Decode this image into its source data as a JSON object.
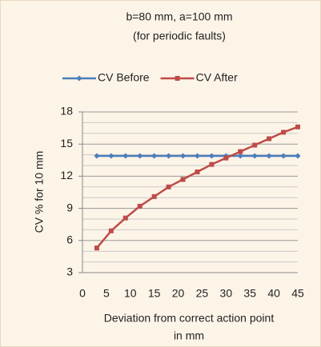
{
  "chart_data": {
    "type": "line",
    "title": [
      "b=80 mm, a=100 mm",
      "(for periodic faults)"
    ],
    "y_label": "CV % for 10 mm",
    "x_label": [
      "Deviation from correct  action point",
      "in mm"
    ],
    "xlim": [
      0,
      45
    ],
    "xticks": [
      0,
      5,
      10,
      15,
      20,
      25,
      30,
      35,
      40,
      45
    ],
    "ylim": [
      3,
      18
    ],
    "yticks": [
      3,
      6,
      9,
      12,
      15,
      18
    ],
    "minor_yticks": [
      4,
      5,
      7,
      8,
      10,
      11,
      13,
      14,
      16,
      17
    ],
    "grid": true,
    "legend": "top",
    "x": [
      3,
      6,
      9,
      12,
      15,
      18,
      21,
      24,
      27,
      30,
      33,
      36,
      39,
      42,
      45
    ],
    "series": [
      {
        "name": "CV Before",
        "color": "#4a7ebb",
        "marker": "diamond",
        "values": [
          13.9,
          13.9,
          13.9,
          13.9,
          13.9,
          13.9,
          13.9,
          13.9,
          13.9,
          13.9,
          13.9,
          13.9,
          13.9,
          13.9,
          13.9
        ]
      },
      {
        "name": "CV After",
        "color": "#be4b48",
        "marker": "square",
        "values": [
          5.3,
          6.9,
          8.1,
          9.2,
          10.1,
          11.0,
          11.7,
          12.4,
          13.1,
          13.7,
          14.3,
          14.9,
          15.5,
          16.1,
          16.6
        ]
      }
    ]
  }
}
